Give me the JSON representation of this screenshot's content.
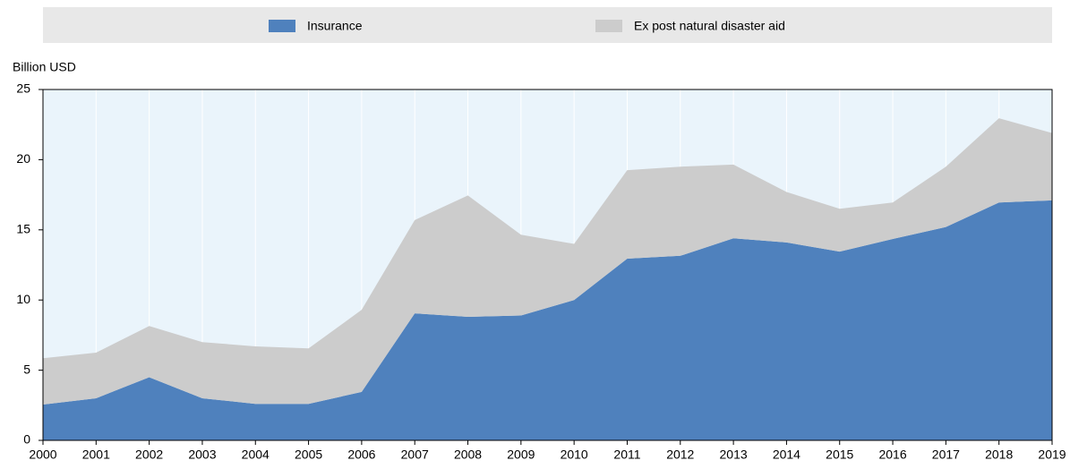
{
  "chart_data": {
    "type": "stacked_area",
    "y_label": "Billion USD",
    "categories": [
      "2000",
      "2001",
      "2002",
      "2003",
      "2004",
      "2005",
      "2006",
      "2007",
      "2008",
      "2009",
      "2010",
      "2011",
      "2012",
      "2013",
      "2014",
      "2015",
      "2016",
      "2017",
      "2018",
      "2019"
    ],
    "series": [
      {
        "name": "Insurance",
        "color": "#4f81bd",
        "values": [
          2.55,
          3.0,
          4.5,
          3.0,
          2.6,
          2.6,
          3.45,
          9.05,
          8.8,
          8.9,
          10.0,
          12.95,
          13.15,
          14.4,
          14.1,
          13.45,
          14.35,
          15.2,
          16.95,
          17.1
        ]
      },
      {
        "name": "Ex post natural disaster aid",
        "color": "#cccccc",
        "values": [
          3.3,
          3.25,
          3.65,
          4.0,
          4.1,
          3.95,
          5.85,
          6.65,
          8.65,
          5.75,
          4.0,
          6.3,
          6.35,
          5.25,
          3.6,
          3.05,
          2.6,
          4.3,
          6.0,
          4.8
        ]
      }
    ],
    "ylim": [
      0,
      25
    ],
    "yticks": [
      0,
      5,
      10,
      15,
      20,
      25
    ]
  }
}
